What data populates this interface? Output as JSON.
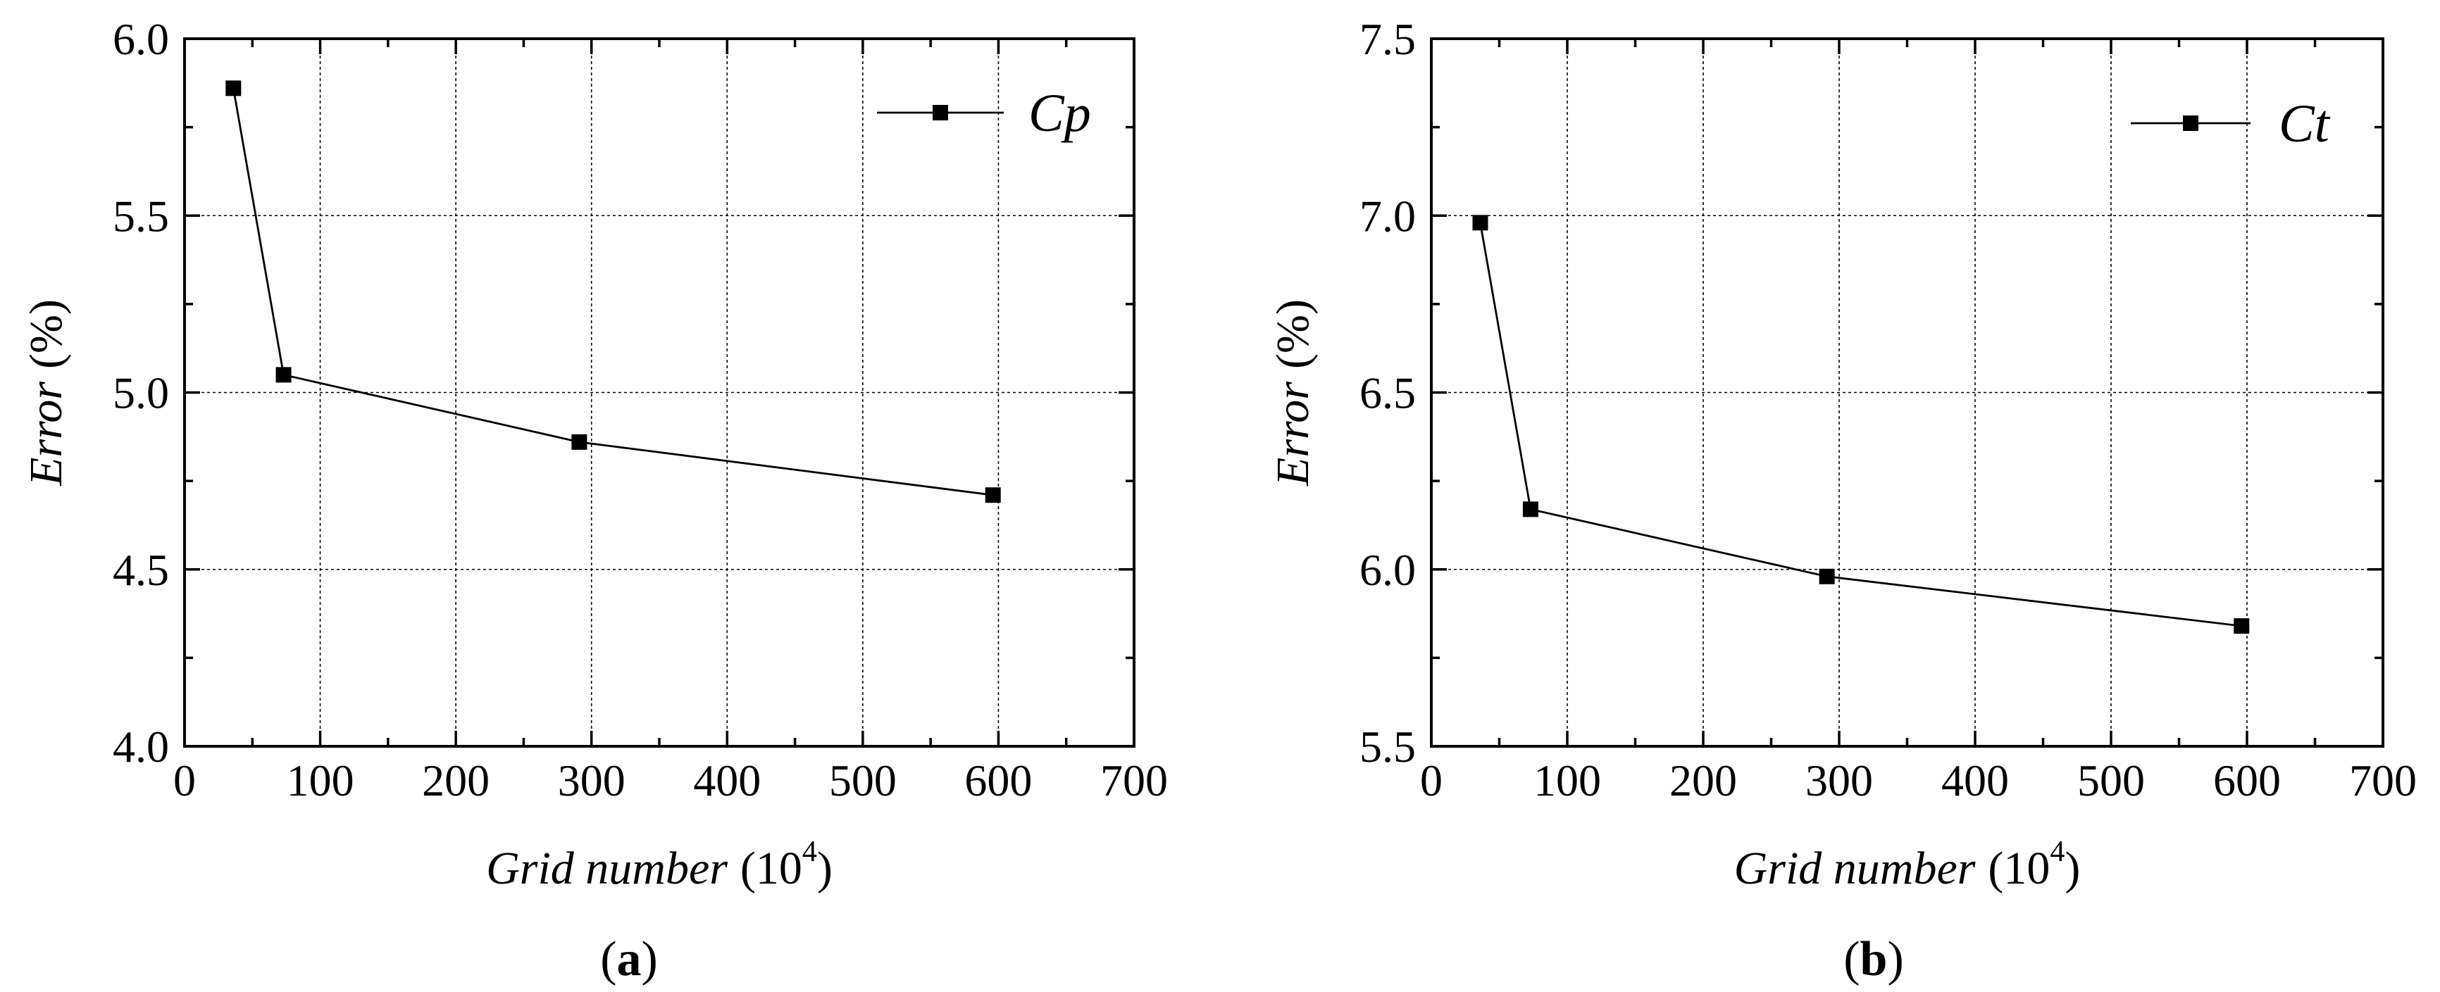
{
  "chart_data": [
    {
      "type": "line",
      "panel_label": "a",
      "xlabel": "Grid number",
      "xlabel_unit": "(10",
      "xlabel_exp": "4",
      "xlabel_close": ")",
      "ylabel": "Error",
      "ylabel_unit": "(%)",
      "xlim": [
        0,
        700
      ],
      "ylim": [
        4.0,
        6.0
      ],
      "xticks": [
        0,
        100,
        200,
        300,
        400,
        500,
        600,
        700
      ],
      "yticks": [
        4.0,
        4.5,
        5.0,
        5.5,
        6.0
      ],
      "xtick_labels": [
        "0",
        "100",
        "200",
        "300",
        "400",
        "500",
        "600",
        "700"
      ],
      "ytick_labels": [
        "4.0",
        "4.5",
        "5.0",
        "5.5",
        "6.0"
      ],
      "grid": true,
      "legend_position": "top-right",
      "series": [
        {
          "name": "Cp",
          "x": [
            36,
            73,
            291,
            596
          ],
          "y": [
            5.86,
            5.05,
            4.86,
            4.71
          ]
        }
      ]
    },
    {
      "type": "line",
      "panel_label": "b",
      "xlabel": "Grid number",
      "xlabel_unit": "(10",
      "xlabel_exp": "4",
      "xlabel_close": ")",
      "ylabel": "Error",
      "ylabel_unit": "(%)",
      "xlim": [
        0,
        700
      ],
      "ylim": [
        5.5,
        7.5
      ],
      "xticks": [
        0,
        100,
        200,
        300,
        400,
        500,
        600,
        700
      ],
      "yticks": [
        5.5,
        6.0,
        6.5,
        7.0,
        7.5
      ],
      "xtick_labels": [
        "0",
        "100",
        "200",
        "300",
        "400",
        "500",
        "600",
        "700"
      ],
      "ytick_labels": [
        "5.5",
        "6.0",
        "6.5",
        "7.0",
        "7.5"
      ],
      "grid": true,
      "legend_position": "top-right",
      "series": [
        {
          "name": "Ct",
          "x": [
            36,
            73,
            291,
            596
          ],
          "y": [
            6.98,
            6.17,
            5.98,
            5.84
          ]
        }
      ]
    }
  ]
}
